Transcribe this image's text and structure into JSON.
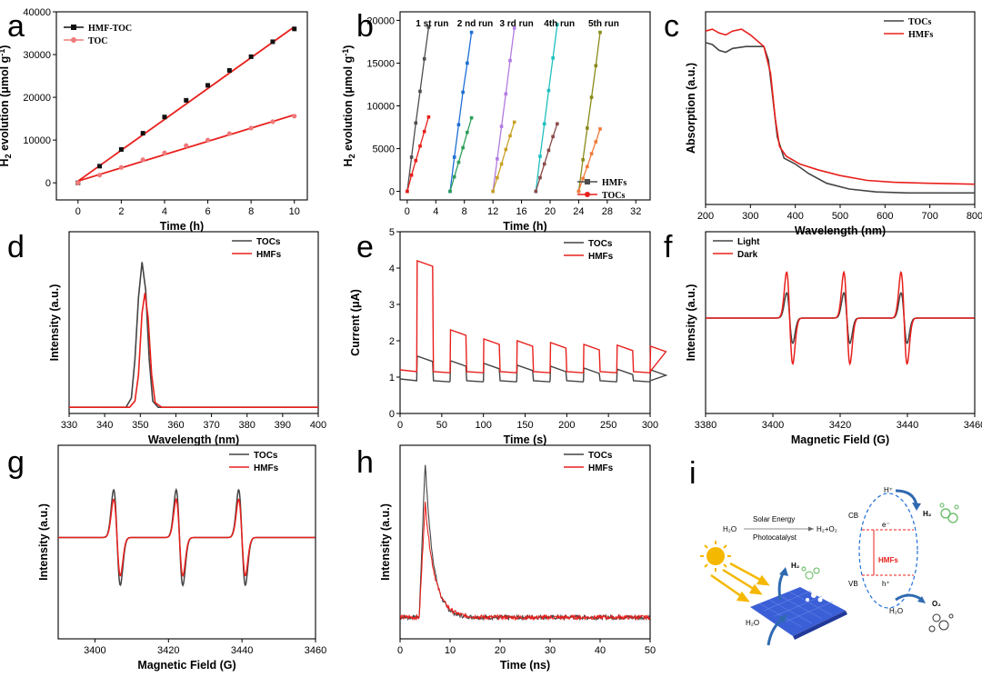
{
  "chart_data": [
    {
      "id": "a",
      "type": "scatter",
      "panel_letter": "a",
      "xlabel": "Time (h)",
      "ylabel_main": "H",
      "ylabel_sub": "2",
      "ylabel_rest": " evolution (μmol g",
      "ylabel_sup": "-1",
      "ylabel_end": ")",
      "xlim": [
        -1,
        10.6
      ],
      "ylim": [
        -4000,
        40000
      ],
      "xticks": [
        "0",
        "2",
        "4",
        "6",
        "8",
        "10"
      ],
      "xtick_values": [
        0,
        2,
        4,
        6,
        8,
        10
      ],
      "yticks": [
        "0",
        "10000",
        "20000",
        "30000",
        "40000"
      ],
      "ytick_values": [
        0,
        10000,
        20000,
        30000,
        40000
      ],
      "legend_position": "top-left",
      "series": [
        {
          "name": "HMF-TOC",
          "color": "#111111",
          "marker": "square",
          "x": [
            0,
            1,
            2,
            3,
            4,
            5,
            6,
            7,
            8,
            9,
            10
          ],
          "y": [
            0,
            3900,
            7800,
            11600,
            15400,
            19300,
            22800,
            26300,
            29500,
            33000,
            36000
          ],
          "fit": [
            [
              0,
              400
            ],
            [
              10,
              36500
            ]
          ],
          "fit_color": "#e8201c"
        },
        {
          "name": "TOC",
          "color": "#f07a7a",
          "marker": "circle",
          "x": [
            0,
            1,
            2,
            3,
            4,
            5,
            6,
            7,
            8,
            9,
            10
          ],
          "y": [
            0,
            1800,
            3600,
            5400,
            7000,
            8700,
            10000,
            11500,
            12800,
            14300,
            15600
          ],
          "fit": [
            [
              0,
              400
            ],
            [
              10,
              15900
            ]
          ],
          "fit_color": "#e8201c"
        }
      ]
    },
    {
      "id": "b",
      "type": "line",
      "panel_letter": "b",
      "xlabel": "Time (h)",
      "ylabel_main": "H",
      "ylabel_sub": "2",
      "ylabel_rest": " evolution (μmol g",
      "ylabel_sup": "-1",
      "ylabel_end": ")",
      "xlim": [
        -1,
        34
      ],
      "ylim": [
        -1000,
        21000
      ],
      "xticks": [
        "0",
        "4",
        "8",
        "12",
        "16",
        "20",
        "24",
        "28",
        "32"
      ],
      "xtick_values": [
        0,
        4,
        8,
        12,
        16,
        20,
        24,
        28,
        32
      ],
      "yticks": [
        "0",
        "5000",
        "10000",
        "15000",
        "20000"
      ],
      "ytick_values": [
        0,
        5000,
        10000,
        15000,
        20000
      ],
      "run_labels": [
        "1 st run",
        "2 nd run",
        "3 rd run",
        "4th run",
        "5th run"
      ],
      "run_label_x": [
        3.5,
        9.5,
        15.3,
        21.3,
        27.5
      ],
      "legend": [
        "HMFs",
        "TOCs"
      ],
      "series": [
        {
          "name": "HMFs run 1",
          "color": "#4d4d4d",
          "x": [
            0,
            0.6,
            1.2,
            1.8,
            2.4,
            3.0,
            3.6,
            4.2
          ],
          "y": [
            0,
            4000,
            8000,
            11700,
            15500,
            19200,
            null,
            null
          ]
        },
        {
          "name": "TOCs run 1",
          "color": "#e8201c",
          "x": [
            0,
            0.6,
            1.2,
            1.8,
            2.4,
            3.0,
            3.6,
            4.2
          ],
          "y": [
            0,
            1900,
            3600,
            5300,
            7000,
            8700,
            null,
            null
          ]
        },
        {
          "name": "HMFs run 2",
          "color": "#1f6fd4",
          "x": [
            6,
            6.6,
            7.2,
            7.8,
            8.4,
            9.0
          ],
          "y": [
            0,
            4000,
            7800,
            11600,
            15000,
            18600
          ]
        },
        {
          "name": "TOCs run 2",
          "color": "#2e9e5a",
          "x": [
            6,
            6.6,
            7.2,
            7.8,
            8.4,
            9.0
          ],
          "y": [
            0,
            1700,
            3400,
            5100,
            6900,
            8600
          ]
        },
        {
          "name": "HMFs run 3",
          "color": "#b27ae0",
          "x": [
            12,
            12.6,
            13.2,
            13.8,
            14.4,
            15.0
          ],
          "y": [
            0,
            3800,
            7600,
            11400,
            15300,
            19100
          ]
        },
        {
          "name": "TOCs run 3",
          "color": "#c9a227",
          "x": [
            12,
            12.6,
            13.2,
            13.8,
            14.4,
            15.0
          ],
          "y": [
            0,
            1600,
            3200,
            4900,
            6500,
            8100
          ]
        },
        {
          "name": "HMFs run 4",
          "color": "#1fbfbf",
          "x": [
            18,
            18.6,
            19.2,
            19.8,
            20.4,
            21.0
          ],
          "y": [
            0,
            4100,
            7900,
            11800,
            15600,
            19500
          ]
        },
        {
          "name": "TOCs run 4",
          "color": "#8b4a4a",
          "x": [
            18,
            18.6,
            19.2,
            19.8,
            20.4,
            21.0
          ],
          "y": [
            0,
            1600,
            3200,
            4800,
            6400,
            7900
          ]
        },
        {
          "name": "HMFs run 5",
          "color": "#8a8a1a",
          "x": [
            24,
            24.6,
            25.2,
            25.8,
            26.4,
            27.0
          ],
          "y": [
            0,
            3700,
            7400,
            11000,
            14700,
            18600
          ]
        },
        {
          "name": "TOCs run 5",
          "color": "#f07a3a",
          "x": [
            24,
            24.6,
            25.2,
            25.8,
            26.4,
            27.0
          ],
          "y": [
            0,
            1500,
            2900,
            4400,
            5800,
            7300
          ]
        }
      ]
    },
    {
      "id": "c",
      "type": "line",
      "panel_letter": "c",
      "xlabel": "Wavelength (nm)",
      "ylabel": "Absorption (a.u.)",
      "xlim": [
        200,
        800
      ],
      "ylim": [
        0,
        1
      ],
      "xticks": [
        "200",
        "300",
        "400",
        "500",
        "600",
        "700",
        "800"
      ],
      "xtick_values": [
        200,
        300,
        400,
        500,
        600,
        700,
        800
      ],
      "legend": [
        "TOCs",
        "HMFs"
      ],
      "series": [
        {
          "name": "TOCs",
          "color": "#444444",
          "x": [
            200,
            215,
            230,
            245,
            260,
            290,
            330,
            340,
            350,
            360,
            375,
            400,
            430,
            470,
            520,
            580,
            650,
            720,
            800
          ],
          "y": [
            0.84,
            0.83,
            0.8,
            0.79,
            0.81,
            0.82,
            0.82,
            0.75,
            0.55,
            0.35,
            0.24,
            0.21,
            0.16,
            0.11,
            0.08,
            0.065,
            0.06,
            0.06,
            0.06
          ]
        },
        {
          "name": "HMFs",
          "color": "#e8201c",
          "x": [
            200,
            215,
            230,
            245,
            260,
            280,
            300,
            330,
            345,
            355,
            365,
            380,
            410,
            450,
            500,
            560,
            620,
            700,
            800
          ],
          "y": [
            0.9,
            0.91,
            0.89,
            0.88,
            0.9,
            0.91,
            0.88,
            0.82,
            0.68,
            0.45,
            0.3,
            0.25,
            0.21,
            0.18,
            0.15,
            0.125,
            0.115,
            0.11,
            0.105
          ]
        }
      ]
    },
    {
      "id": "d",
      "type": "line",
      "panel_letter": "d",
      "xlabel": "Wavelength (nm)",
      "ylabel": "Intensity (a.u.)",
      "xlim": [
        330,
        400
      ],
      "ylim": [
        0,
        1
      ],
      "xticks": [
        "330",
        "340",
        "350",
        "360",
        "370",
        "380",
        "390",
        "400"
      ],
      "xtick_values": [
        330,
        340,
        350,
        360,
        370,
        380,
        390,
        400
      ],
      "legend": [
        "TOCs",
        "HMFs"
      ],
      "series": [
        {
          "name": "TOCs",
          "color": "#444444",
          "x": [
            330,
            346,
            347.5,
            348.5,
            349.5,
            350.5,
            351.5,
            352.5,
            353.5,
            355,
            400
          ],
          "y": [
            0.04,
            0.04,
            0.1,
            0.35,
            0.75,
            0.98,
            0.8,
            0.35,
            0.08,
            0.04,
            0.04
          ]
        },
        {
          "name": "HMFs",
          "color": "#e8201c",
          "x": [
            330,
            347,
            348.5,
            349.5,
            350.5,
            351.3,
            352.2,
            353.2,
            354.2,
            356,
            400
          ],
          "y": [
            0.04,
            0.04,
            0.08,
            0.25,
            0.65,
            0.78,
            0.62,
            0.25,
            0.07,
            0.04,
            0.04
          ]
        }
      ]
    },
    {
      "id": "e",
      "type": "line",
      "panel_letter": "e",
      "xlabel": "Time (s)",
      "ylabel": "Current (μA)",
      "xlim": [
        0,
        300
      ],
      "ylim": [
        0,
        5
      ],
      "xticks": [
        "0",
        "50",
        "100",
        "150",
        "200",
        "250",
        "300"
      ],
      "xtick_values": [
        0,
        50,
        100,
        150,
        200,
        250,
        300
      ],
      "yticks": [
        "0",
        "1",
        "2",
        "3",
        "4",
        "5"
      ],
      "ytick_values": [
        0,
        1,
        2,
        3,
        4,
        5
      ],
      "legend": [
        "TOCs",
        "HMFs"
      ],
      "series": [
        {
          "name": "TOCs",
          "color": "#444444",
          "on_level": [
            1.58,
            1.45,
            1.38,
            1.33,
            1.3,
            1.25,
            1.22,
            1.2
          ],
          "off_level": 0.9
        },
        {
          "name": "HMFs",
          "color": "#e8201c",
          "on_level": [
            4.2,
            2.3,
            2.05,
            2.0,
            1.95,
            1.9,
            1.88,
            1.85
          ],
          "off_level": 1.15
        }
      ],
      "pulse_period_s": 40,
      "pulse_on_s": 20
    },
    {
      "id": "f",
      "type": "line",
      "panel_letter": "f",
      "xlabel": "Magnetic Field (G)",
      "ylabel": "Intensity (a.u.)",
      "xlim": [
        3380,
        3460
      ],
      "xticks": [
        "3380",
        "3400",
        "3420",
        "3440",
        "3460"
      ],
      "xtick_values": [
        3380,
        3400,
        3420,
        3440,
        3460
      ],
      "legend": [
        "Light",
        "Dark"
      ],
      "peak_centers": [
        3405,
        3422,
        3439
      ],
      "series": [
        {
          "name": "Light",
          "color": "#444444",
          "amplitude": 0.55
        },
        {
          "name": "Dark",
          "color": "#e8201c",
          "amplitude": 1.0
        }
      ]
    },
    {
      "id": "g",
      "type": "line",
      "panel_letter": "g",
      "xlabel": "Magnetic Field (G)",
      "ylabel": "Intensity (a.u.)",
      "xlim": [
        3390,
        3460
      ],
      "xticks": [
        "3400",
        "3420",
        "3440",
        "3460"
      ],
      "xtick_values": [
        3400,
        3420,
        3440,
        3460
      ],
      "legend": [
        "TOCs",
        "HMFs"
      ],
      "peak_centers": [
        3406,
        3423,
        3440
      ],
      "series": [
        {
          "name": "TOCs",
          "color": "#444444",
          "amplitude": 1.0
        },
        {
          "name": "HMFs",
          "color": "#e8201c",
          "amplitude": 0.8
        }
      ]
    },
    {
      "id": "h",
      "type": "line",
      "panel_letter": "h",
      "xlabel": "Time (ns)",
      "ylabel": "Intensity (a.u.)",
      "xlim": [
        0,
        50
      ],
      "xticks": [
        "0",
        "10",
        "20",
        "30",
        "40",
        "50"
      ],
      "xtick_values": [
        0,
        10,
        20,
        30,
        40,
        50
      ],
      "legend": [
        "TOCs",
        "HMFs"
      ],
      "series": [
        {
          "name": "TOCs",
          "color": "#444444",
          "peak": 0.95,
          "tau": 1.6
        },
        {
          "name": "HMFs",
          "color": "#e8201c",
          "peak": 0.7,
          "tau": 1.9
        }
      ]
    }
  ],
  "panel_i": {
    "letter": "i",
    "reaction_left": "H₂O",
    "reaction_arrow_top": "Solar Energy",
    "reaction_arrow_bottom": "Photocatalyst",
    "reaction_right": "H₂+O₂",
    "cb_label": "CB",
    "vb_label": "VB",
    "electron": "e⁻",
    "hole": "h⁺",
    "proton": "H⁺",
    "h2_top": "H₂",
    "h2o_right": "H₂O",
    "o2_right": "O₂",
    "material": "HMFs",
    "h2_sheet": "H₂",
    "h2o_sheet": "H₂O"
  }
}
